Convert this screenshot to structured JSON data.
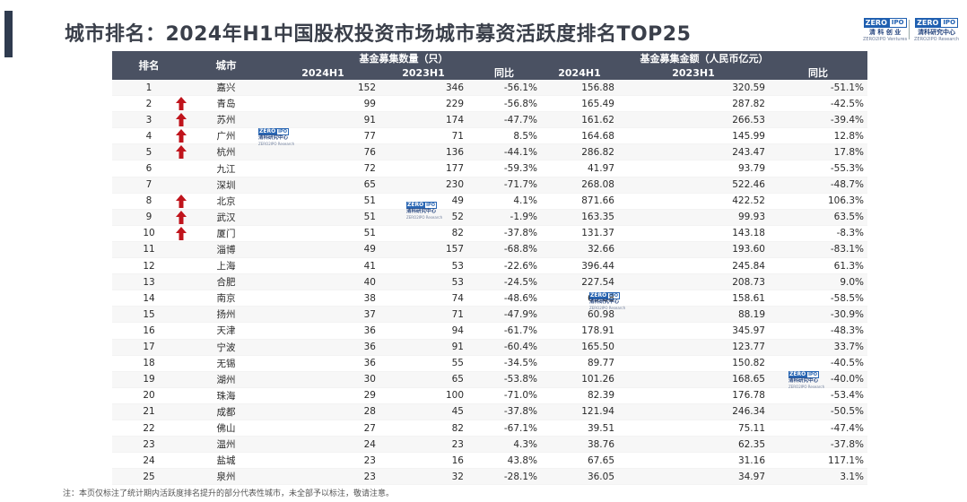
{
  "title": "城市排名：2024年H1中国股权投资市场城市募资活跃度排名TOP25",
  "logo_left": {
    "zero": "ZERO",
    "ipo": "IPO",
    "line2": "清 科 创 业",
    "line3": "ZERO2IPO Ventures"
  },
  "logo_right": {
    "zero": "ZERO",
    "ipo": "IPO",
    "line2": "清科研究中心",
    "line3": "ZERO2IPO Research"
  },
  "watermark": {
    "zero": "ZERO",
    "ipo": "IPO",
    "line2": "清科研究中心",
    "line3": "ZERO2IPO Research"
  },
  "arrow_color": "#c0141c",
  "header_color": "#4a5162",
  "table": {
    "headers": {
      "rank": "排名",
      "city": "城市",
      "count_group": "基金募集数量（只）",
      "amount_group": "基金募集金额（人民币亿元）",
      "h2024": "2024H1",
      "h2023": "2023H1",
      "yoy": "同比",
      "h2024b": "2024H1",
      "h2023b": "2023H1",
      "yoyb": "同比"
    },
    "rows": [
      {
        "rank": "1",
        "city": "嘉兴",
        "c24": "152",
        "c23": "346",
        "cy": "-56.1%",
        "a24": "156.88",
        "a23": "320.59",
        "ay": "-51.1%",
        "up": false
      },
      {
        "rank": "2",
        "city": "青岛",
        "c24": "99",
        "c23": "229",
        "cy": "-56.8%",
        "a24": "165.49",
        "a23": "287.82",
        "ay": "-42.5%",
        "up": true
      },
      {
        "rank": "3",
        "city": "苏州",
        "c24": "91",
        "c23": "174",
        "cy": "-47.7%",
        "a24": "161.62",
        "a23": "266.53",
        "ay": "-39.4%",
        "up": true
      },
      {
        "rank": "4",
        "city": "广州",
        "c24": "77",
        "c23": "71",
        "cy": "8.5%",
        "a24": "164.68",
        "a23": "145.99",
        "ay": "12.8%",
        "up": true
      },
      {
        "rank": "5",
        "city": "杭州",
        "c24": "76",
        "c23": "136",
        "cy": "-44.1%",
        "a24": "286.82",
        "a23": "243.47",
        "ay": "17.8%",
        "up": true
      },
      {
        "rank": "6",
        "city": "九江",
        "c24": "72",
        "c23": "177",
        "cy": "-59.3%",
        "a24": "41.97",
        "a23": "93.79",
        "ay": "-55.3%",
        "up": false
      },
      {
        "rank": "7",
        "city": "深圳",
        "c24": "65",
        "c23": "230",
        "cy": "-71.7%",
        "a24": "268.08",
        "a23": "522.46",
        "ay": "-48.7%",
        "up": false
      },
      {
        "rank": "8",
        "city": "北京",
        "c24": "51",
        "c23": "49",
        "cy": "4.1%",
        "a24": "871.66",
        "a23": "422.52",
        "ay": "106.3%",
        "up": true
      },
      {
        "rank": "9",
        "city": "武汉",
        "c24": "51",
        "c23": "52",
        "cy": "-1.9%",
        "a24": "163.35",
        "a23": "99.93",
        "ay": "63.5%",
        "up": true
      },
      {
        "rank": "10",
        "city": "厦门",
        "c24": "51",
        "c23": "82",
        "cy": "-37.8%",
        "a24": "131.37",
        "a23": "143.18",
        "ay": "-8.3%",
        "up": true
      },
      {
        "rank": "11",
        "city": "淄博",
        "c24": "49",
        "c23": "157",
        "cy": "-68.8%",
        "a24": "32.66",
        "a23": "193.60",
        "ay": "-83.1%",
        "up": false
      },
      {
        "rank": "12",
        "city": "上海",
        "c24": "41",
        "c23": "53",
        "cy": "-22.6%",
        "a24": "396.44",
        "a23": "245.84",
        "ay": "61.3%",
        "up": false
      },
      {
        "rank": "13",
        "city": "合肥",
        "c24": "40",
        "c23": "53",
        "cy": "-24.5%",
        "a24": "227.54",
        "a23": "208.73",
        "ay": "9.0%",
        "up": false
      },
      {
        "rank": "14",
        "city": "南京",
        "c24": "38",
        "c23": "74",
        "cy": "-48.6%",
        "a24": "65.88",
        "a23": "158.61",
        "ay": "-58.5%",
        "up": false
      },
      {
        "rank": "15",
        "city": "扬州",
        "c24": "37",
        "c23": "71",
        "cy": "-47.9%",
        "a24": "60.98",
        "a23": "88.19",
        "ay": "-30.9%",
        "up": false
      },
      {
        "rank": "16",
        "city": "天津",
        "c24": "36",
        "c23": "94",
        "cy": "-61.7%",
        "a24": "178.91",
        "a23": "345.97",
        "ay": "-48.3%",
        "up": false
      },
      {
        "rank": "17",
        "city": "宁波",
        "c24": "36",
        "c23": "91",
        "cy": "-60.4%",
        "a24": "165.50",
        "a23": "123.77",
        "ay": "33.7%",
        "up": false
      },
      {
        "rank": "18",
        "city": "无锡",
        "c24": "36",
        "c23": "55",
        "cy": "-34.5%",
        "a24": "89.77",
        "a23": "150.82",
        "ay": "-40.5%",
        "up": false
      },
      {
        "rank": "19",
        "city": "湖州",
        "c24": "30",
        "c23": "65",
        "cy": "-53.8%",
        "a24": "101.26",
        "a23": "168.65",
        "ay": "-40.0%",
        "up": false
      },
      {
        "rank": "20",
        "city": "珠海",
        "c24": "29",
        "c23": "100",
        "cy": "-71.0%",
        "a24": "82.39",
        "a23": "176.78",
        "ay": "-53.4%",
        "up": false
      },
      {
        "rank": "21",
        "city": "成都",
        "c24": "28",
        "c23": "45",
        "cy": "-37.8%",
        "a24": "121.94",
        "a23": "246.34",
        "ay": "-50.5%",
        "up": false
      },
      {
        "rank": "22",
        "city": "佛山",
        "c24": "27",
        "c23": "82",
        "cy": "-67.1%",
        "a24": "39.51",
        "a23": "75.11",
        "ay": "-47.4%",
        "up": false
      },
      {
        "rank": "23",
        "city": "温州",
        "c24": "24",
        "c23": "23",
        "cy": "4.3%",
        "a24": "38.76",
        "a23": "62.35",
        "ay": "-37.8%",
        "up": false
      },
      {
        "rank": "24",
        "city": "盐城",
        "c24": "23",
        "c23": "16",
        "cy": "43.8%",
        "a24": "67.65",
        "a23": "31.16",
        "ay": "117.1%",
        "up": false
      },
      {
        "rank": "25",
        "city": "泉州",
        "c24": "23",
        "c23": "32",
        "cy": "-28.1%",
        "a24": "36.05",
        "a23": "34.97",
        "ay": "3.1%",
        "up": false
      }
    ]
  },
  "note": "注：本页仅标注了统计期内活跃度排名提升的部分代表性城市，未全部予以标注，敬请注意。"
}
